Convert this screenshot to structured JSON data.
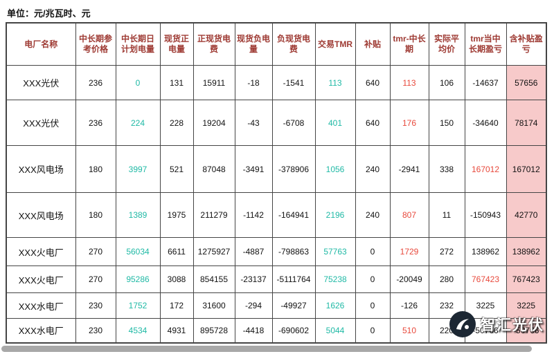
{
  "unit_label": "单位：元/兆瓦时、元",
  "table": {
    "columns": [
      "电厂名称",
      "中长期参考价格",
      "中长期日计划电量",
      "现货正电量",
      "正现货电费",
      "现货负电量",
      "负现货电费",
      "交易TMR",
      "补贴",
      "tmr-中长期",
      "实际平均价",
      "tmr当中长期盈亏",
      "含补贴盈亏"
    ],
    "rows": [
      {
        "cells": [
          "XXX光伏",
          "236",
          "0",
          "131",
          "15911",
          "-18",
          "-1541",
          "113",
          "640",
          "113",
          "106",
          "-14637",
          "57656"
        ],
        "colors": [
          "k",
          "k",
          "t",
          "k",
          "k",
          "k",
          "k",
          "t",
          "k",
          "r",
          "k",
          "k",
          "k"
        ]
      },
      {
        "cells": [
          "XXX光伏",
          "236",
          "224",
          "228",
          "19204",
          "-43",
          "-6708",
          "401",
          "640",
          "176",
          "150",
          "-34640",
          "78174"
        ],
        "colors": [
          "k",
          "k",
          "t",
          "k",
          "k",
          "k",
          "k",
          "t",
          "k",
          "r",
          "k",
          "k",
          "k"
        ]
      },
      {
        "cells": [
          "XXX风电场",
          "180",
          "3997",
          "521",
          "87048",
          "-3491",
          "-378906",
          "1056",
          "240",
          "-2941",
          "338",
          "167012",
          "167012"
        ],
        "colors": [
          "k",
          "k",
          "t",
          "k",
          "k",
          "k",
          "k",
          "t",
          "k",
          "k",
          "k",
          "r",
          "k"
        ]
      },
      {
        "cells": [
          "XXX风电场",
          "180",
          "1389",
          "1975",
          "211279",
          "-1142",
          "-164941",
          "2196",
          "240",
          "807",
          "11",
          "-150943",
          "42770"
        ],
        "colors": [
          "k",
          "k",
          "t",
          "k",
          "k",
          "k",
          "k",
          "t",
          "k",
          "r",
          "k",
          "k",
          "k"
        ]
      },
      {
        "cells": [
          "XXX火电厂",
          "270",
          "56034",
          "6611",
          "1275927",
          "-4887",
          "-798863",
          "57763",
          "0",
          "1729",
          "272",
          "138962",
          "138962"
        ],
        "colors": [
          "k",
          "k",
          "t",
          "k",
          "k",
          "k",
          "k",
          "t",
          "k",
          "r",
          "k",
          "k",
          "k"
        ]
      },
      {
        "cells": [
          "XXX火电厂",
          "270",
          "95286",
          "3088",
          "854155",
          "-23137",
          "-5111764",
          "75238",
          "0",
          "-20049",
          "280",
          "767423",
          "767423"
        ],
        "colors": [
          "k",
          "k",
          "t",
          "k",
          "k",
          "k",
          "k",
          "t",
          "k",
          "k",
          "k",
          "r",
          "k"
        ]
      },
      {
        "cells": [
          "XXX水电厂",
          "230",
          "1752",
          "172",
          "31600",
          "-294",
          "-49927",
          "1626",
          "0",
          "-126",
          "232",
          "3225",
          "3225"
        ],
        "colors": [
          "k",
          "k",
          "t",
          "k",
          "k",
          "k",
          "k",
          "t",
          "k",
          "k",
          "k",
          "k",
          "k"
        ]
      },
      {
        "cells": [
          "XXX水电厂",
          "230",
          "4534",
          "4931",
          "895728",
          "-4418",
          "-690602",
          "5044",
          "0",
          "510",
          "220",
          "-50766",
          "-50766"
        ],
        "colors": [
          "k",
          "k",
          "t",
          "k",
          "k",
          "k",
          "k",
          "t",
          "k",
          "r",
          "k",
          "k",
          "k"
        ]
      }
    ]
  },
  "watermark": {
    "text": "智汇光伏"
  },
  "colors": {
    "teal": "#1fb9a5",
    "red": "#e8483b",
    "header_red": "#9e3a33",
    "pink_bg": "#f7caca",
    "grid": "#444444",
    "scrollbar": "#a8a8a8"
  }
}
